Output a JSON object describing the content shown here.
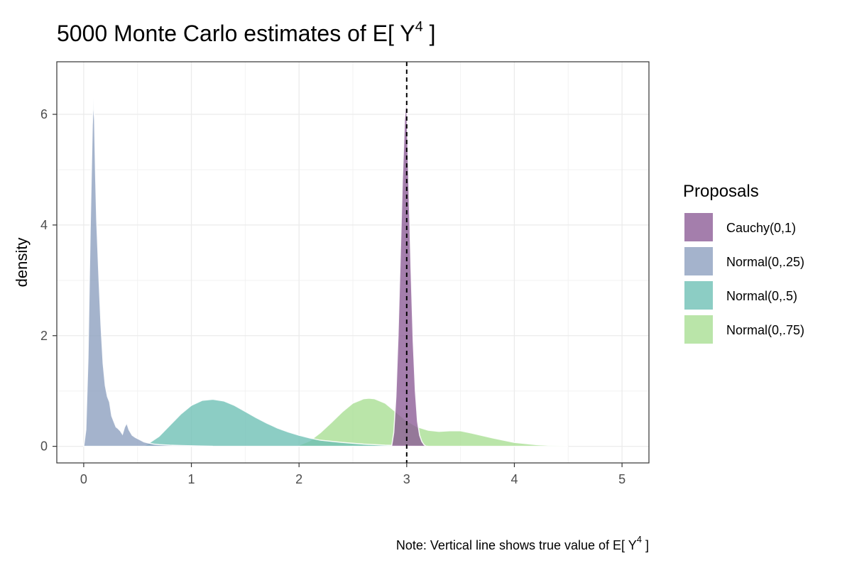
{
  "chart_data": {
    "type": "area",
    "title": "5000 Monte Carlo estimates of E[ Y",
    "title_superscript": "4",
    "title_suffix": " ]",
    "xlabel": "",
    "ylabel": "density",
    "xlim": [
      -0.25,
      5.25
    ],
    "ylim": [
      -0.3,
      6.95
    ],
    "x_ticks": [
      0,
      1,
      2,
      3,
      4,
      5
    ],
    "y_ticks": [
      0,
      2,
      4,
      6
    ],
    "grid": true,
    "legend_title": "Proposals",
    "legend_position": "right",
    "caption": "Note: Vertical line shows true value of E[ Y",
    "caption_superscript": "4",
    "caption_suffix": " ]",
    "reference_line": {
      "x": 3,
      "style": "dashed",
      "color": "#000000"
    },
    "series": [
      {
        "name": "Cauchy(0,1)",
        "color": "#8a5a95",
        "x": [
          2.86,
          2.88,
          2.9,
          2.92,
          2.94,
          2.96,
          2.98,
          2.995,
          3.0,
          3.005,
          3.02,
          3.04,
          3.06,
          3.08,
          3.1,
          3.12,
          3.14,
          3.16,
          3.18
        ],
        "y": [
          0,
          0.25,
          0.9,
          2.0,
          3.4,
          4.8,
          5.9,
          6.25,
          6.2,
          5.8,
          4.7,
          3.2,
          1.9,
          1.0,
          0.45,
          0.2,
          0.09,
          0.03,
          0
        ]
      },
      {
        "name": "Normal(0,.25)",
        "color": "#8b9dbe",
        "x": [
          0.0,
          0.02,
          0.04,
          0.06,
          0.08,
          0.09,
          0.1,
          0.11,
          0.12,
          0.14,
          0.16,
          0.18,
          0.2,
          0.22,
          0.24,
          0.26,
          0.28,
          0.3,
          0.32,
          0.34,
          0.36,
          0.38,
          0.4,
          0.42,
          0.45,
          0.48,
          0.52,
          0.56,
          0.6,
          0.65,
          0.7,
          0.8,
          0.9,
          1.0,
          1.1,
          1.2
        ],
        "y": [
          0,
          0.3,
          1.6,
          3.9,
          5.8,
          6.3,
          5.9,
          4.9,
          4.1,
          3.1,
          2.2,
          1.5,
          1.1,
          0.9,
          0.8,
          0.55,
          0.45,
          0.35,
          0.32,
          0.28,
          0.22,
          0.35,
          0.42,
          0.3,
          0.2,
          0.16,
          0.12,
          0.08,
          0.06,
          0.04,
          0.03,
          0.02,
          0.015,
          0.01,
          0.005,
          0
        ]
      },
      {
        "name": "Normal(0,.5)",
        "color": "#6cbfb3",
        "x": [
          0.55,
          0.6,
          0.7,
          0.8,
          0.9,
          1.0,
          1.1,
          1.2,
          1.3,
          1.4,
          1.5,
          1.6,
          1.7,
          1.8,
          1.9,
          2.0,
          2.1,
          2.2,
          2.4,
          2.6,
          2.8,
          3.0,
          3.2
        ],
        "y": [
          0,
          0.05,
          0.18,
          0.38,
          0.58,
          0.74,
          0.83,
          0.85,
          0.82,
          0.74,
          0.63,
          0.52,
          0.42,
          0.33,
          0.26,
          0.2,
          0.15,
          0.11,
          0.07,
          0.04,
          0.02,
          0.01,
          0
        ]
      },
      {
        "name": "Normal(0,.75)",
        "color": "#a7de91",
        "x": [
          1.95,
          2.0,
          2.1,
          2.2,
          2.3,
          2.4,
          2.5,
          2.6,
          2.65,
          2.7,
          2.8,
          2.9,
          3.0,
          3.1,
          3.2,
          3.3,
          3.4,
          3.5,
          3.6,
          3.8,
          4.0,
          4.2,
          4.5
        ],
        "y": [
          0,
          0.02,
          0.1,
          0.25,
          0.43,
          0.62,
          0.78,
          0.86,
          0.87,
          0.86,
          0.78,
          0.62,
          0.46,
          0.35,
          0.29,
          0.27,
          0.28,
          0.28,
          0.24,
          0.15,
          0.07,
          0.03,
          0
        ]
      }
    ]
  }
}
